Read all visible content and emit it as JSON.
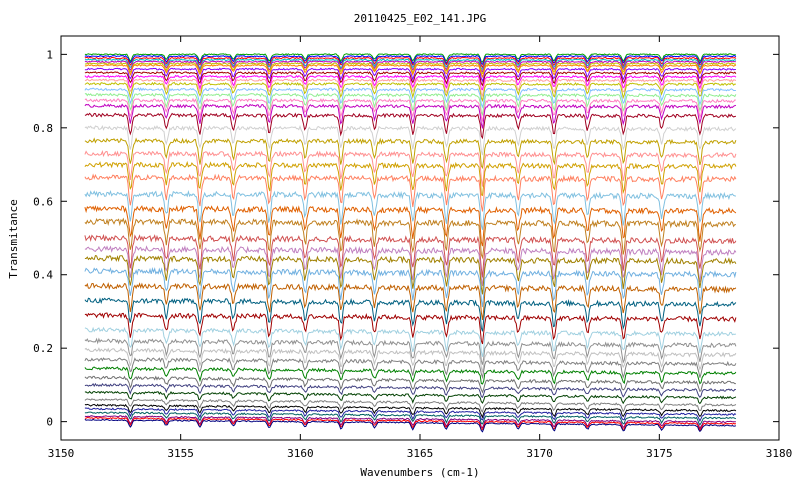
{
  "chart_data": {
    "type": "line",
    "title": "20110425_E02_141.JPG",
    "xlabel": "Wavenumbers (cm-1)",
    "ylabel": "Transmitance",
    "xlim": [
      3150,
      3180
    ],
    "ylim": [
      -0.05,
      1.05
    ],
    "x_range": [
      3151.0,
      3178.2
    ],
    "grid": false,
    "legend": "none",
    "x_ticks": [
      3150,
      3155,
      3160,
      3165,
      3170,
      3175,
      3180
    ],
    "y_ticks": [
      0,
      0.2,
      0.4,
      0.6,
      0.8,
      1
    ],
    "x_tick_labels": [
      "3150",
      "3155",
      "3160",
      "3165",
      "3170",
      "3175",
      "3180"
    ],
    "y_tick_labels": [
      "0",
      "0.2",
      "0.4",
      "0.6",
      "0.8",
      "1"
    ],
    "absorption_lines_cm1": [
      3152.9,
      3154.4,
      3155.8,
      3157.2,
      3158.7,
      3160.2,
      3161.7,
      3163.1,
      3164.7,
      3166.1,
      3167.6,
      3169.1,
      3170.6,
      3172.0,
      3173.5,
      3175.1,
      3176.7
    ],
    "series_baselines": [
      1.0,
      0.995,
      0.99,
      0.985,
      0.98,
      0.975,
      0.97,
      0.96,
      0.95,
      0.94,
      0.93,
      0.92,
      0.905,
      0.89,
      0.875,
      0.86,
      0.835,
      0.8,
      0.765,
      0.73,
      0.7,
      0.665,
      0.62,
      0.58,
      0.545,
      0.5,
      0.47,
      0.445,
      0.41,
      0.37,
      0.33,
      0.29,
      0.25,
      0.22,
      0.195,
      0.17,
      0.145,
      0.12,
      0.1,
      0.08,
      0.06,
      0.045,
      0.035,
      0.025,
      0.015,
      0.01,
      0.005
    ],
    "series_colors": [
      "#00a000",
      "#0000ff",
      "#ff0000",
      "#00c0c0",
      "#c000c0",
      "#c0c000",
      "#ff8000",
      "#8000ff",
      "#a00000",
      "#ff00ff",
      "#ffa0a0",
      "#c0c000",
      "#80c0ff",
      "#90ee90",
      "#ff80c0",
      "#c000c0",
      "#a00020",
      "#d0d0d0",
      "#c0a000",
      "#ff9090",
      "#d0a000",
      "#ff8060",
      "#80c0e0",
      "#e06000",
      "#c08020",
      "#d05050",
      "#c080c0",
      "#a08000",
      "#70b0e0",
      "#c06000",
      "#006080",
      "#a00000",
      "#a0d0e0",
      "#909090",
      "#c0c0c0",
      "#808080",
      "#008000",
      "#707070",
      "#404080",
      "#004000",
      "#808080",
      "#000000",
      "#2020a0",
      "#006060",
      "#800080",
      "#ff0000",
      "#000080"
    ]
  }
}
